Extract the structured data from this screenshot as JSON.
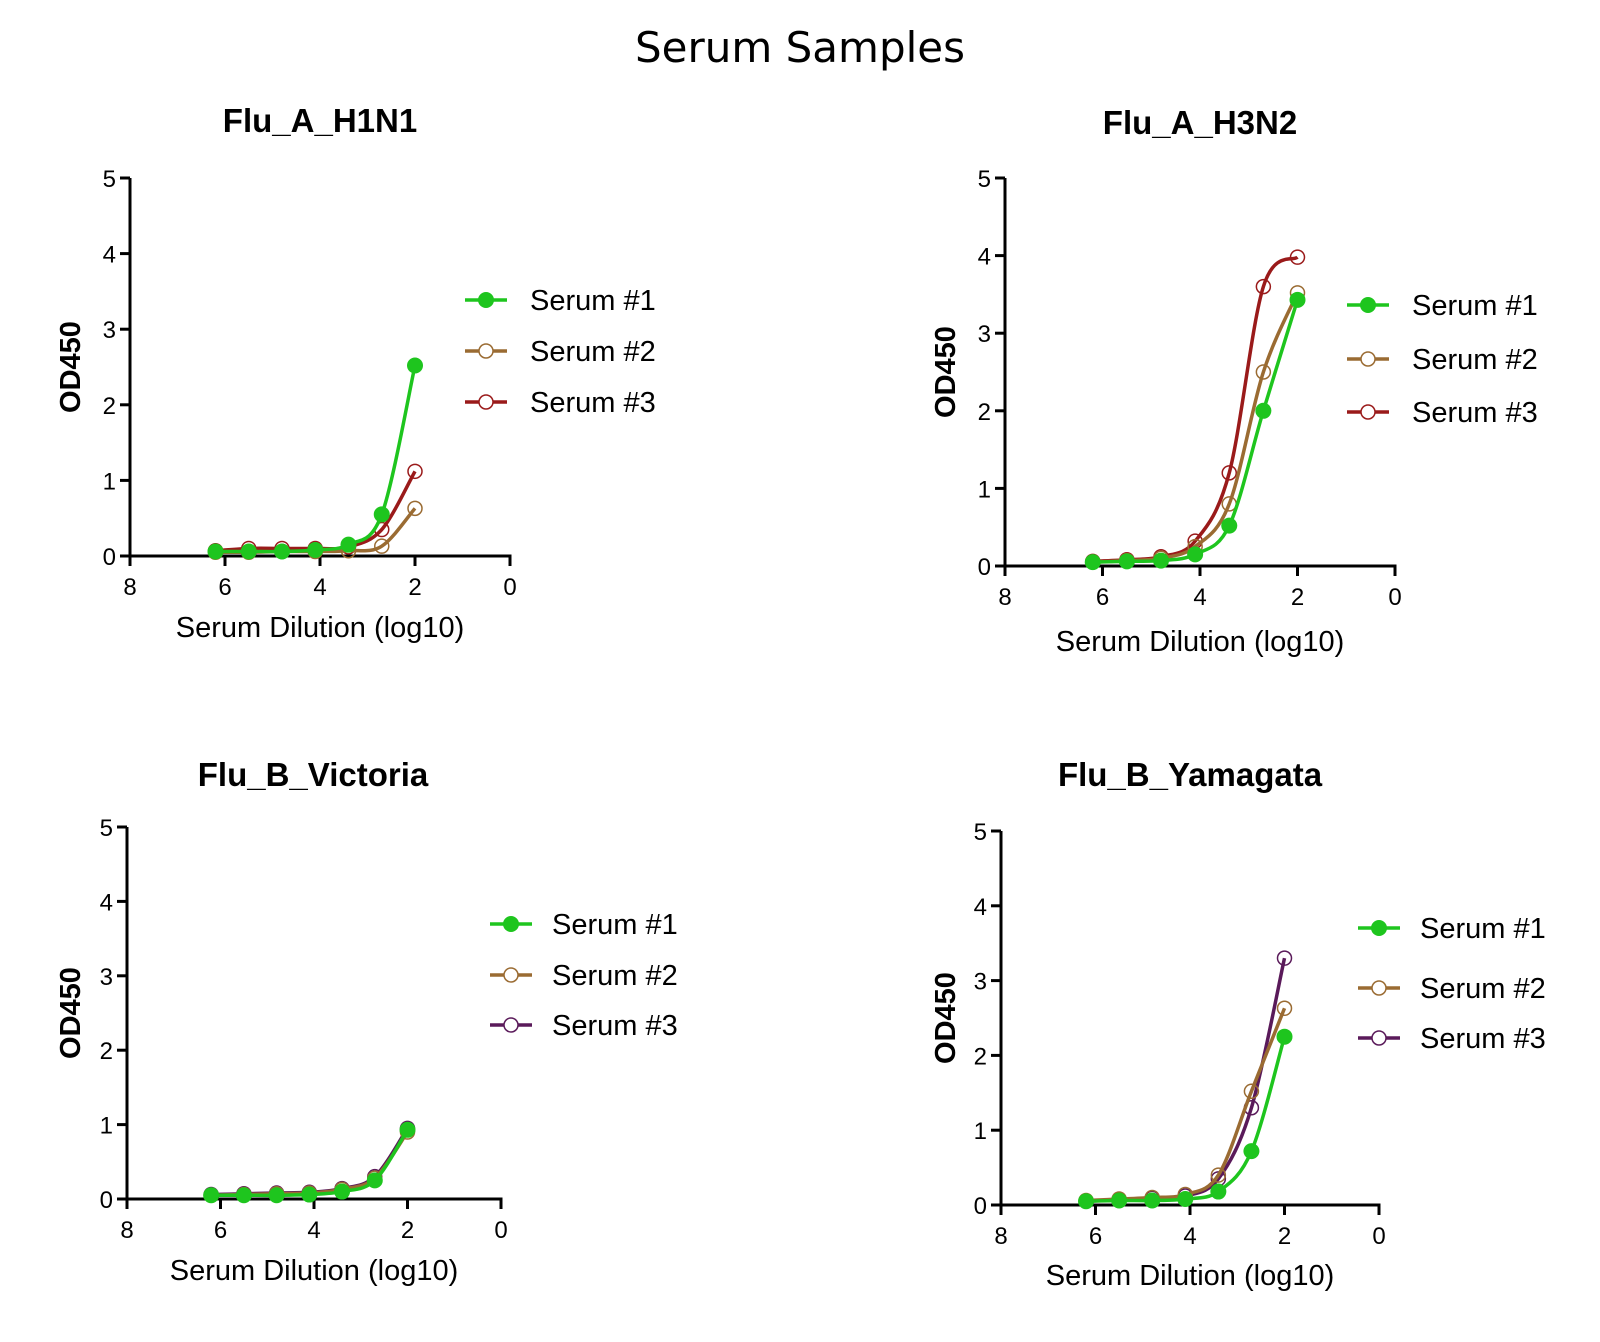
{
  "chart_data": {
    "title": "Serum Samples",
    "panels": [
      {
        "type": "line",
        "title": "Flu_A_H1N1",
        "xlabel": "Serum Dilution (log10)",
        "ylabel": "OD450",
        "xlim": [
          8,
          0
        ],
        "ylim": [
          0,
          5
        ],
        "xticks": [
          8,
          6,
          4,
          2,
          0
        ],
        "yticks": [
          0,
          1,
          2,
          3,
          4,
          5
        ],
        "legend": "right",
        "series": [
          {
            "name": "Serum #1",
            "color": "#1ec51e",
            "marker": "filled",
            "x": [
              6.2,
              5.5,
              4.8,
              4.1,
              3.4,
              2.7,
              2.0
            ],
            "y": [
              0.06,
              0.06,
              0.06,
              0.08,
              0.15,
              0.55,
              2.52
            ]
          },
          {
            "name": "Serum #2",
            "color": "#9a6b32",
            "marker": "open",
            "x": [
              6.2,
              5.5,
              4.8,
              4.1,
              3.4,
              2.7,
              2.0
            ],
            "y": [
              0.05,
              0.05,
              0.06,
              0.06,
              0.07,
              0.13,
              0.63
            ]
          },
          {
            "name": "Serum #3",
            "color": "#9a1a1a",
            "marker": "open",
            "x": [
              6.2,
              5.5,
              4.8,
              4.1,
              3.4,
              2.7,
              2.0
            ],
            "y": [
              0.07,
              0.1,
              0.1,
              0.1,
              0.12,
              0.35,
              1.12
            ]
          }
        ]
      },
      {
        "type": "line",
        "title": "Flu_A_H3N2",
        "xlabel": "Serum Dilution (log10)",
        "ylabel": "OD450",
        "xlim": [
          8,
          0
        ],
        "ylim": [
          0,
          5
        ],
        "xticks": [
          8,
          6,
          4,
          2,
          0
        ],
        "yticks": [
          0,
          1,
          2,
          3,
          4,
          5
        ],
        "legend": "right",
        "series": [
          {
            "name": "Serum #1",
            "color": "#1ec51e",
            "marker": "filled",
            "x": [
              6.2,
              5.5,
              4.8,
              4.1,
              3.4,
              2.7,
              2.0
            ],
            "y": [
              0.05,
              0.06,
              0.07,
              0.15,
              0.52,
              2.0,
              3.43
            ]
          },
          {
            "name": "Serum #2",
            "color": "#9a6b32",
            "marker": "open",
            "x": [
              6.2,
              5.5,
              4.8,
              4.1,
              3.4,
              2.7,
              2.0
            ],
            "y": [
              0.05,
              0.07,
              0.1,
              0.25,
              0.8,
              2.5,
              3.52
            ]
          },
          {
            "name": "Serum #3",
            "color": "#9a1a1a",
            "marker": "open",
            "x": [
              6.2,
              5.5,
              4.8,
              4.1,
              3.4,
              2.7,
              2.0
            ],
            "y": [
              0.06,
              0.08,
              0.12,
              0.32,
              1.2,
              3.6,
              3.98
            ]
          }
        ]
      },
      {
        "type": "line",
        "title": "Flu_B_Victoria",
        "xlabel": "Serum Dilution (log10)",
        "ylabel": "OD450",
        "xlim": [
          8,
          0
        ],
        "ylim": [
          0,
          5
        ],
        "xticks": [
          8,
          6,
          4,
          2,
          0
        ],
        "yticks": [
          0,
          1,
          2,
          3,
          4,
          5
        ],
        "legend": "right",
        "series": [
          {
            "name": "Serum #1",
            "color": "#1ec51e",
            "marker": "filled",
            "x": [
              6.2,
              5.5,
              4.8,
              4.1,
              3.4,
              2.7,
              2.0
            ],
            "y": [
              0.05,
              0.05,
              0.05,
              0.06,
              0.1,
              0.25,
              0.93
            ]
          },
          {
            "name": "Serum #2",
            "color": "#9a6b32",
            "marker": "open",
            "x": [
              6.2,
              5.5,
              4.8,
              4.1,
              3.4,
              2.7,
              2.0
            ],
            "y": [
              0.05,
              0.06,
              0.07,
              0.08,
              0.13,
              0.28,
              0.9
            ]
          },
          {
            "name": "Serum #3",
            "color": "#5a1a5a",
            "marker": "open",
            "x": [
              6.2,
              5.5,
              4.8,
              4.1,
              3.4,
              2.7,
              2.0
            ],
            "y": [
              0.06,
              0.07,
              0.08,
              0.09,
              0.14,
              0.3,
              0.95
            ]
          }
        ]
      },
      {
        "type": "line",
        "title": "Flu_B_Yamagata",
        "xlabel": "Serum Dilution (log10)",
        "ylabel": "OD450",
        "xlim": [
          8,
          0
        ],
        "ylim": [
          0,
          5
        ],
        "xticks": [
          8,
          6,
          4,
          2,
          0
        ],
        "yticks": [
          0,
          1,
          2,
          3,
          4,
          5
        ],
        "legend": "right",
        "series": [
          {
            "name": "Serum #1",
            "color": "#1ec51e",
            "marker": "filled",
            "x": [
              6.2,
              5.5,
              4.8,
              4.1,
              3.4,
              2.7,
              2.0
            ],
            "y": [
              0.05,
              0.06,
              0.06,
              0.08,
              0.18,
              0.72,
              2.25
            ]
          },
          {
            "name": "Serum #2",
            "color": "#9a6b32",
            "marker": "open",
            "x": [
              6.2,
              5.5,
              4.8,
              4.1,
              3.4,
              2.7,
              2.0
            ],
            "y": [
              0.06,
              0.08,
              0.1,
              0.14,
              0.4,
              1.52,
              2.63
            ]
          },
          {
            "name": "Serum #3",
            "color": "#5a1a5a",
            "marker": "open",
            "x": [
              6.2,
              5.5,
              4.8,
              4.1,
              3.4,
              2.7,
              2.0
            ],
            "y": [
              0.05,
              0.07,
              0.09,
              0.12,
              0.35,
              1.3,
              3.3
            ]
          }
        ]
      }
    ]
  }
}
